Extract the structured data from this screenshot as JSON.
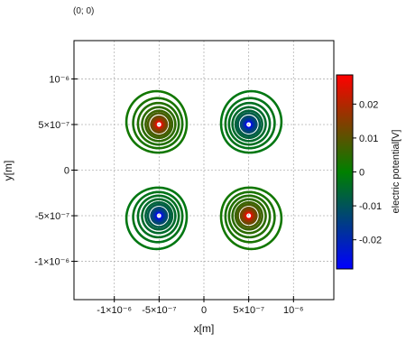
{
  "mouse_position": "(0; 0)",
  "chart_data": {
    "type": "contour",
    "xlabel": "x[m]",
    "ylabel": "y[m]",
    "xlim": [
      -1.45e-06,
      1.45e-06
    ],
    "ylim": [
      -1.42e-06,
      1.42e-06
    ],
    "x_ticks": [
      {
        "value": -1e-06,
        "label": "-1×10⁻⁶"
      },
      {
        "value": -5e-07,
        "label": "-5×10⁻⁷"
      },
      {
        "value": 0,
        "label": "0"
      },
      {
        "value": 5e-07,
        "label": "5×10⁻⁷"
      },
      {
        "value": 1e-06,
        "label": "10⁻⁶"
      }
    ],
    "y_ticks": [
      {
        "value": 1e-06,
        "label": "10⁻⁶"
      },
      {
        "value": 5e-07,
        "label": "5×10⁻⁷"
      },
      {
        "value": 0,
        "label": "0"
      },
      {
        "value": -5e-07,
        "label": "-5×10⁻⁷"
      },
      {
        "value": -1e-06,
        "label": "-1×10⁻⁶"
      }
    ],
    "grid": true,
    "charges": [
      {
        "x": -5e-07,
        "y": 5e-07,
        "sign": 1
      },
      {
        "x": 5e-07,
        "y": 5e-07,
        "sign": -1
      },
      {
        "x": -5e-07,
        "y": -5e-07,
        "sign": -1
      },
      {
        "x": 5e-07,
        "y": -5e-07,
        "sign": 1
      }
    ],
    "contour_levels": [
      0.0286,
      0.0245,
      0.0204,
      0.0163,
      0.0122,
      0.0082,
      0.0065,
      0.0049,
      0.0037,
      0.0028,
      0.002
    ],
    "colorbar": {
      "label": "electric potential[V]",
      "range": [
        -0.0286,
        0.0286
      ],
      "ticks": [
        {
          "value": 0.02,
          "label": "0.02"
        },
        {
          "value": 0.01,
          "label": "0.01"
        },
        {
          "value": 0,
          "label": "0"
        },
        {
          "value": -0.01,
          "label": "-0.01"
        },
        {
          "value": -0.02,
          "label": "-0.02"
        }
      ],
      "colors": [
        "#ff0000",
        "#008000",
        "#0000ff"
      ]
    }
  }
}
